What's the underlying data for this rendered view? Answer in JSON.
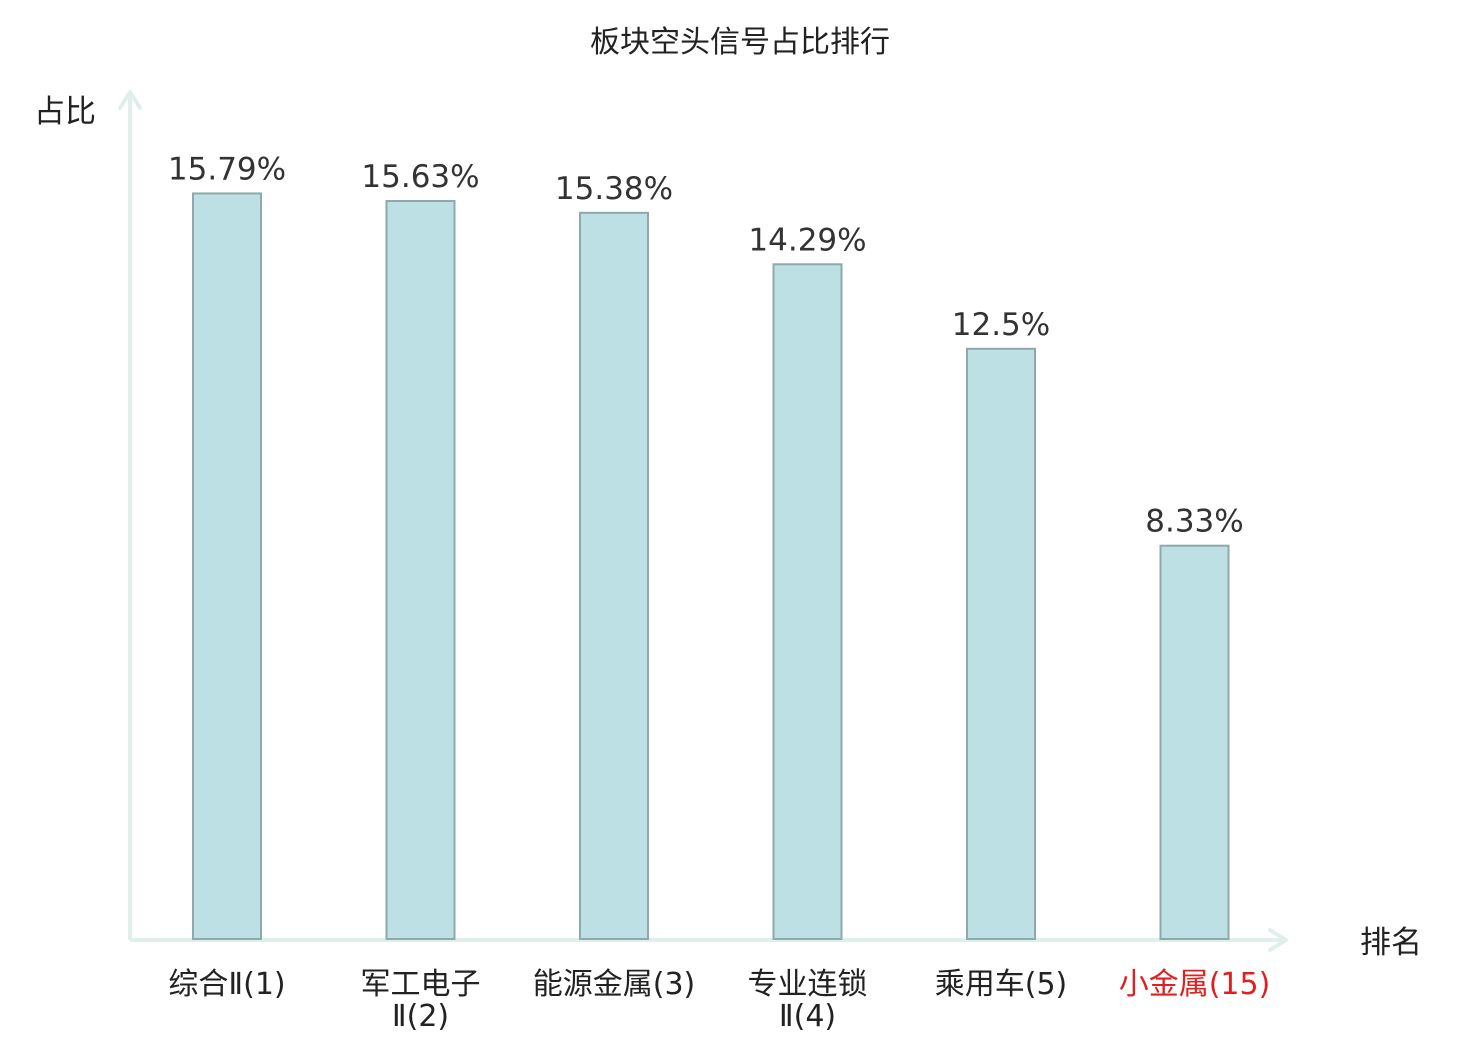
{
  "chart_data": {
    "type": "bar",
    "title": "板块空头信号占比排行",
    "xlabel": "排名",
    "ylabel": "占比",
    "categories": [
      [
        "综合Ⅱ(1)"
      ],
      [
        "军工电子",
        "Ⅱ(2)"
      ],
      [
        "能源金属(3)"
      ],
      [
        "专业连锁",
        "Ⅱ(4)"
      ],
      [
        "乘用车(5)"
      ],
      [
        "小金属(15)"
      ]
    ],
    "values": [
      15.79,
      15.63,
      15.38,
      14.29,
      12.5,
      8.33
    ],
    "value_labels": [
      "15.79%",
      "15.63%",
      "15.38%",
      "14.29%",
      "12.5%",
      "8.33%"
    ],
    "highlight_index": 5,
    "ylim": [
      0,
      17.6
    ],
    "grid": false,
    "colors": {
      "bar_fill": "#bce0e3",
      "bar_stroke": "#8fa8aa",
      "axis": "#dff0ec",
      "text": "#222222",
      "highlight_text": "#e02020"
    }
  }
}
